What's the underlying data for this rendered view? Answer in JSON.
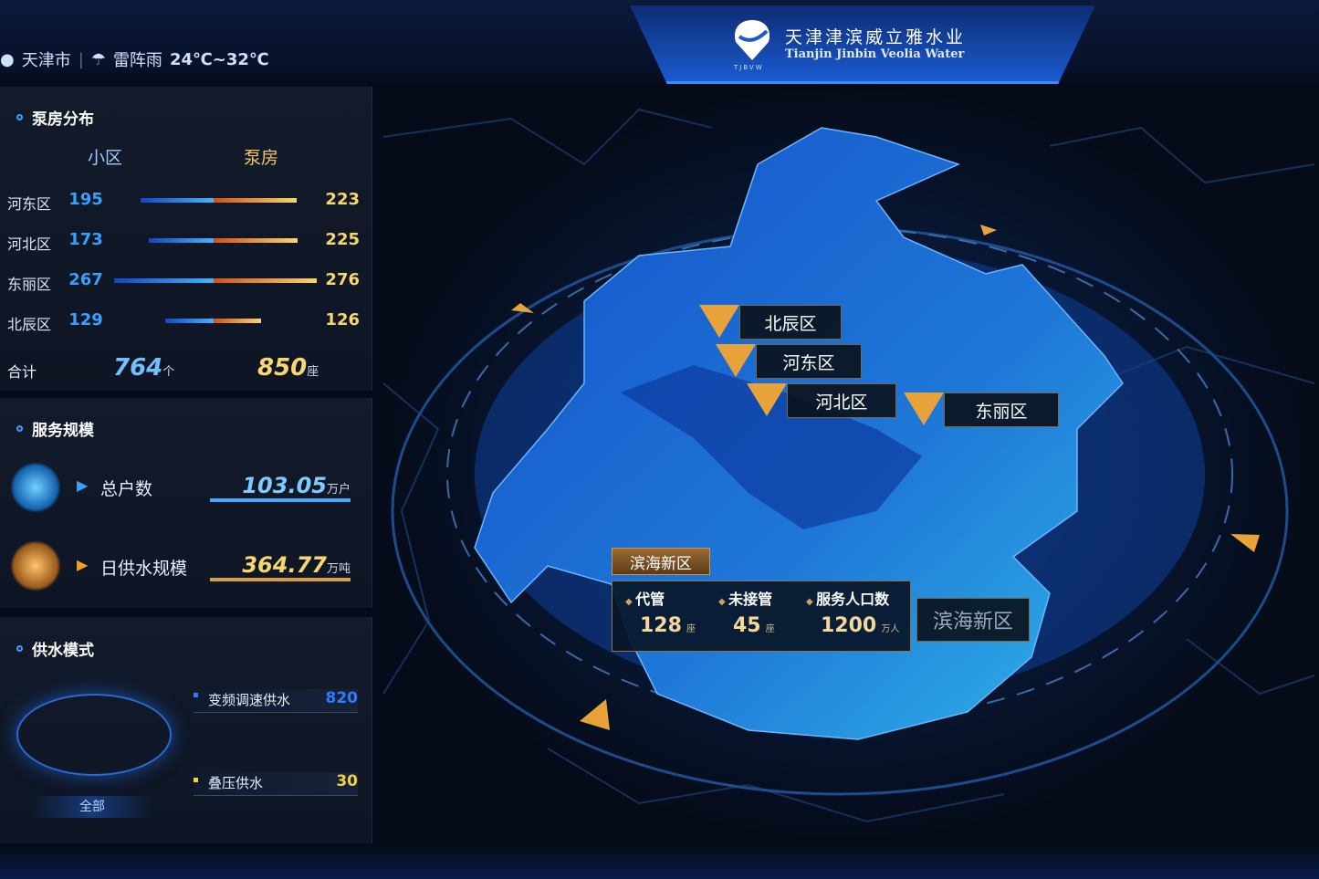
{
  "header": {
    "city": "天津市",
    "weather": "雷阵雨",
    "temperature": "24℃~32℃",
    "company_cn": "天津津滨威立雅水业",
    "company_en": "Tianjin Jinbin Veolia Water",
    "logo_text": "TJBVW"
  },
  "pump_distribution": {
    "title": "泵房分布",
    "col_left": "小区",
    "col_right": "泵房",
    "max_value": 300,
    "rows": [
      {
        "district": "河东区",
        "communities": 195,
        "pump_rooms": 223
      },
      {
        "district": "河北区",
        "communities": 173,
        "pump_rooms": 225
      },
      {
        "district": "东丽区",
        "communities": 267,
        "pump_rooms": 276
      },
      {
        "district": "北辰区",
        "communities": 129,
        "pump_rooms": 126
      }
    ],
    "total_label": "合计",
    "total_communities": "764",
    "total_communities_unit": "个",
    "total_pumps": "850",
    "total_pumps_unit": "座"
  },
  "service_scale": {
    "title": "服务规模",
    "items": [
      {
        "label": "总户数",
        "value": "103.05",
        "unit": "万户",
        "icon": "house-icon"
      },
      {
        "label": "日供水规模",
        "value": "364.77",
        "unit": "万吨",
        "icon": "people-icon"
      }
    ]
  },
  "supply_mode": {
    "title": "供水模式",
    "center_label": "全部",
    "items": [
      {
        "label": "变频调速供水",
        "value": "820",
        "color": "#2f7bff"
      },
      {
        "label": "叠压供水",
        "value": "30",
        "color": "#f2d23a"
      }
    ]
  },
  "map": {
    "labels": [
      "北辰区",
      "河东区",
      "河北区",
      "东丽区"
    ],
    "popup": {
      "title": "滨海新区",
      "behind_label": "滨海新区",
      "stats": [
        {
          "key": "代管",
          "value": "128",
          "unit": "座"
        },
        {
          "key": "未接管",
          "value": "45",
          "unit": "座"
        },
        {
          "key": "服务人口数",
          "value": "1200",
          "unit": "万人"
        }
      ]
    }
  },
  "colors": {
    "accent_blue": "#3aa0ff",
    "accent_gold": "#f7d770"
  }
}
